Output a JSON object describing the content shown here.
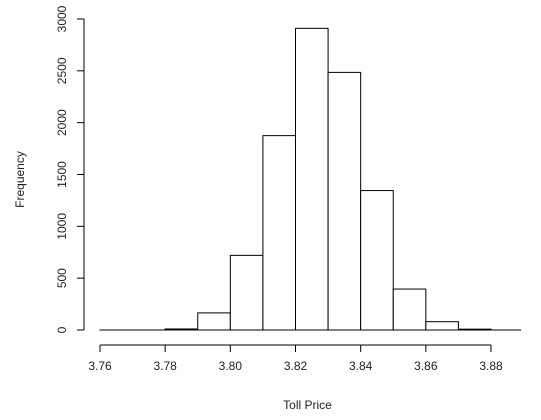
{
  "chart_data": {
    "type": "bar",
    "subtype": "histogram",
    "title": "",
    "xlabel": "Toll Price",
    "ylabel": "Frequency",
    "bins": [
      {
        "x0": 3.76,
        "x1": 3.77,
        "count": 0
      },
      {
        "x0": 3.77,
        "x1": 3.78,
        "count": 0
      },
      {
        "x0": 3.78,
        "x1": 3.79,
        "count": 10
      },
      {
        "x0": 3.79,
        "x1": 3.8,
        "count": 165
      },
      {
        "x0": 3.8,
        "x1": 3.81,
        "count": 720
      },
      {
        "x0": 3.81,
        "x1": 3.82,
        "count": 1875
      },
      {
        "x0": 3.82,
        "x1": 3.83,
        "count": 2910
      },
      {
        "x0": 3.83,
        "x1": 3.84,
        "count": 2485
      },
      {
        "x0": 3.84,
        "x1": 3.85,
        "count": 1345
      },
      {
        "x0": 3.85,
        "x1": 3.86,
        "count": 395
      },
      {
        "x0": 3.86,
        "x1": 3.87,
        "count": 80
      },
      {
        "x0": 3.87,
        "x1": 3.88,
        "count": 8
      }
    ],
    "xlim": [
      3.76,
      3.88
    ],
    "ylim": [
      0,
      3000
    ],
    "x_ticks": [
      3.76,
      3.78,
      3.8,
      3.82,
      3.84,
      3.86,
      3.88
    ],
    "x_tick_labels": [
      "3.76",
      "3.78",
      "3.80",
      "3.82",
      "3.84",
      "3.86",
      "3.88"
    ],
    "y_ticks": [
      0,
      500,
      1000,
      1500,
      2000,
      2500,
      3000
    ],
    "y_tick_labels": [
      "0",
      "500",
      "1000",
      "1500",
      "2000",
      "2500",
      "3000"
    ],
    "grid": false,
    "legend": "none",
    "bar_fill": "#ffffff",
    "bar_stroke": "#000000"
  }
}
